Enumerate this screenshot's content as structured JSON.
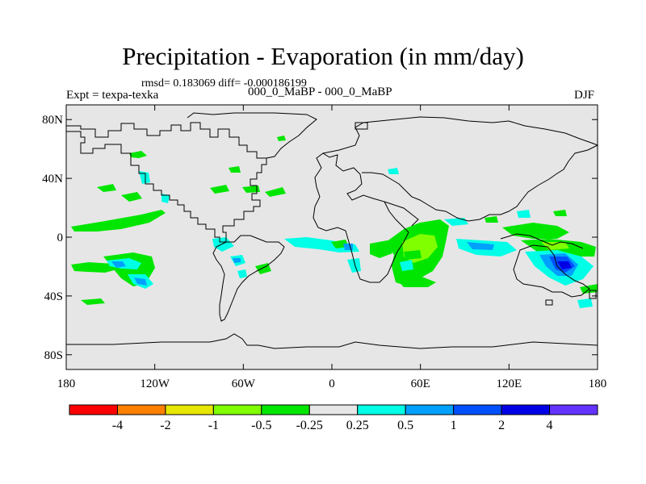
{
  "title": "Precipitation - Evaporation (in mm/day)",
  "stats": "rmsd= 0.183069 diff= -0.000186199",
  "experiment": "Expt = texpa-texka",
  "cases": "000_0_MaBP - 000_0_MaBP",
  "season": "DJF",
  "map": {
    "background_color": "#e6e6e6",
    "lon_range": [
      -180,
      180
    ],
    "lat_range": [
      -90,
      90
    ],
    "x_ticks": [
      {
        "lon": -180,
        "label": "180"
      },
      {
        "lon": -120,
        "label": "120W"
      },
      {
        "lon": -60,
        "label": "60W"
      },
      {
        "lon": 0,
        "label": "0"
      },
      {
        "lon": 60,
        "label": "60E"
      },
      {
        "lon": 120,
        "label": "120E"
      },
      {
        "lon": 180,
        "label": "180"
      }
    ],
    "y_ticks": [
      {
        "lat": 80,
        "label": "80N"
      },
      {
        "lat": 40,
        "label": "40N"
      },
      {
        "lat": 0,
        "label": "0"
      },
      {
        "lat": -40,
        "label": "40S"
      },
      {
        "lat": -80,
        "label": "80S"
      }
    ]
  },
  "colorbar": {
    "colors": [
      "#ff0000",
      "#ff8000",
      "#e6e600",
      "#80ff00",
      "#00e600",
      "#e6e6e6",
      "#00ffe6",
      "#00a0ff",
      "#0050ff",
      "#0000e6",
      "#6432ff"
    ],
    "labels": [
      "-4",
      "-2",
      "-1",
      "-0.5",
      "-0.25",
      "0.25",
      "0.5",
      "1",
      "2",
      "4"
    ]
  }
}
